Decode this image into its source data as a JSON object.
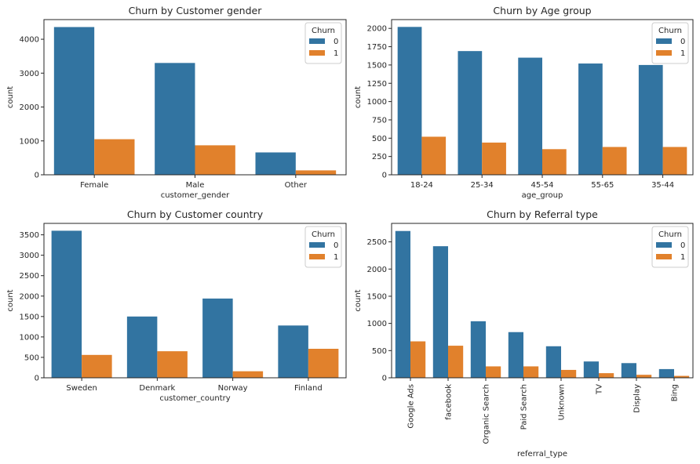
{
  "palette": {
    "0": "#3274a1",
    "1": "#e1812c"
  },
  "chart_data": [
    {
      "type": "bar",
      "title": "Churn by Customer gender",
      "xlabel": "customer_gender",
      "ylabel": "count",
      "categories": [
        "Female",
        "Male",
        "Other"
      ],
      "ylim": [
        0,
        4580
      ],
      "yticks": [
        0,
        1000,
        2000,
        3000,
        4000
      ],
      "legend": {
        "title": "Churn",
        "position": "top-right"
      },
      "series": [
        {
          "name": "0",
          "color": "#3274a1",
          "values": [
            4360,
            3300,
            660
          ]
        },
        {
          "name": "1",
          "color": "#e1812c",
          "values": [
            1050,
            870,
            130
          ]
        }
      ]
    },
    {
      "type": "bar",
      "title": "Churn by Age group",
      "xlabel": "age_group",
      "ylabel": "count",
      "categories": [
        "18-24",
        "25-34",
        "45-54",
        "55-65",
        "35-44"
      ],
      "ylim": [
        0,
        2120
      ],
      "yticks": [
        0,
        250,
        500,
        750,
        1000,
        1250,
        1500,
        1750,
        2000
      ],
      "legend": {
        "title": "Churn",
        "position": "top-right"
      },
      "series": [
        {
          "name": "0",
          "color": "#3274a1",
          "values": [
            2020,
            1690,
            1600,
            1520,
            1500
          ]
        },
        {
          "name": "1",
          "color": "#e1812c",
          "values": [
            520,
            440,
            350,
            380,
            380
          ]
        }
      ]
    },
    {
      "type": "bar",
      "title": "Churn by Customer country",
      "xlabel": "customer_country",
      "ylabel": "count",
      "categories": [
        "Sweden",
        "Denmark",
        "Norway",
        "Finland"
      ],
      "ylim": [
        0,
        3780
      ],
      "yticks": [
        0,
        500,
        1000,
        1500,
        2000,
        2500,
        3000,
        3500
      ],
      "legend": {
        "title": "Churn",
        "position": "top-right"
      },
      "series": [
        {
          "name": "0",
          "color": "#3274a1",
          "values": [
            3600,
            1500,
            1940,
            1280
          ]
        },
        {
          "name": "1",
          "color": "#e1812c",
          "values": [
            560,
            650,
            160,
            710
          ]
        }
      ]
    },
    {
      "type": "bar",
      "title": "Churn by Referral type",
      "xlabel": "referral_type",
      "ylabel": "count",
      "categories": [
        "Google Ads",
        "facebook",
        "Organic Search",
        "Paid Search",
        "Unknown",
        "TV",
        "Display",
        "Bing"
      ],
      "ylim": [
        0,
        2840
      ],
      "yticks": [
        0,
        500,
        1000,
        1500,
        2000,
        2500
      ],
      "rotate_xticks": true,
      "legend": {
        "title": "Churn",
        "position": "top-right"
      },
      "series": [
        {
          "name": "0",
          "color": "#3274a1",
          "values": [
            2700,
            2420,
            1040,
            840,
            580,
            300,
            270,
            160
          ]
        },
        {
          "name": "1",
          "color": "#e1812c",
          "values": [
            670,
            590,
            210,
            210,
            145,
            85,
            55,
            35
          ]
        }
      ]
    }
  ]
}
